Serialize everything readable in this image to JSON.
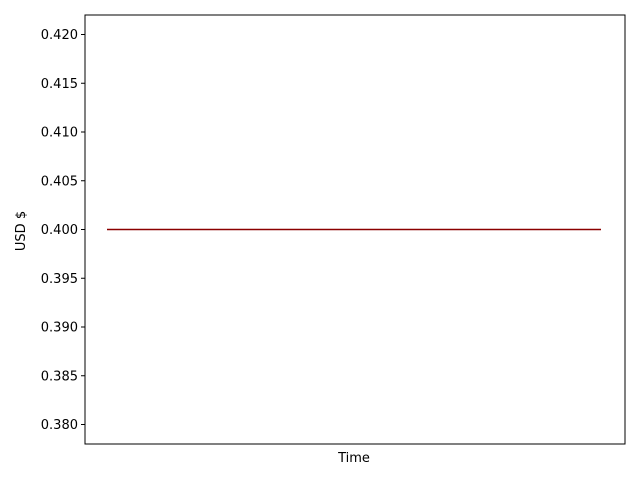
{
  "chart_data": {
    "type": "line",
    "xlabel": "Time",
    "ylabel": "USD $",
    "ylim": [
      0.378,
      0.422
    ],
    "yticks": [
      "0.380",
      "0.385",
      "0.390",
      "0.395",
      "0.400",
      "0.405",
      "0.410",
      "0.415",
      "0.420"
    ],
    "xticks": [],
    "grid": false,
    "legend": "none",
    "series": [
      {
        "color": "#8b0000",
        "values": [
          0.4,
          0.4
        ]
      }
    ]
  }
}
